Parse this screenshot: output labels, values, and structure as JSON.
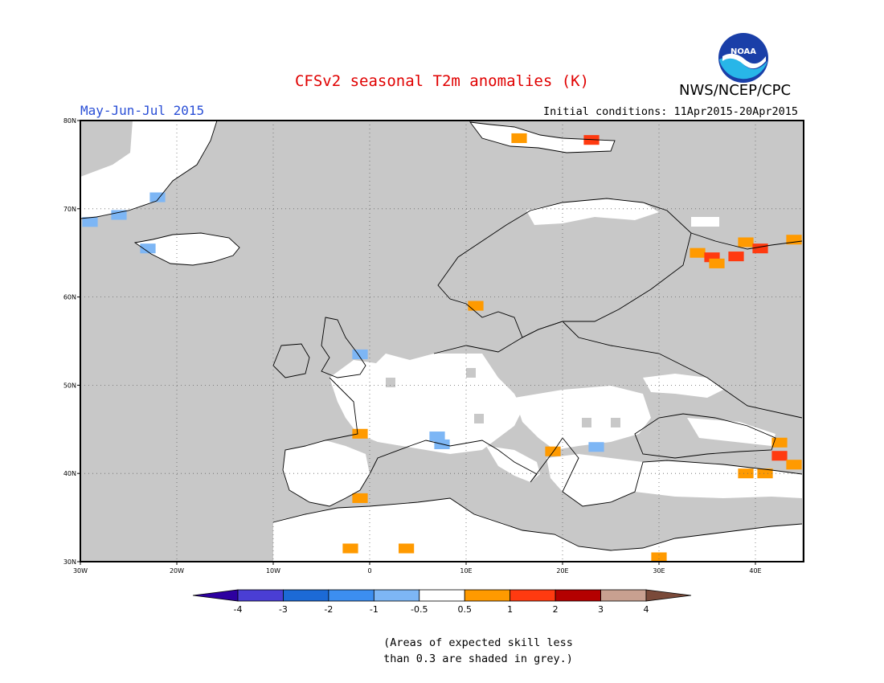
{
  "header": {
    "title": "CFSv2 seasonal T2m anomalies (K)",
    "agency": "NWS/NCEP/CPC",
    "period": "May-Jun-Jul 2015",
    "initial_conditions": "Initial conditions: 11Apr2015-20Apr2015",
    "logo_text": "NOAA"
  },
  "map": {
    "lon_range": [
      -30,
      45
    ],
    "lat_range": [
      30,
      80
    ],
    "lon_ticks": [
      {
        "value": -30,
        "label": "30W"
      },
      {
        "value": -20,
        "label": "20W"
      },
      {
        "value": -10,
        "label": "10W"
      },
      {
        "value": 0,
        "label": "0"
      },
      {
        "value": 10,
        "label": "10E"
      },
      {
        "value": 20,
        "label": "20E"
      },
      {
        "value": 30,
        "label": "30E"
      },
      {
        "value": 40,
        "label": "40E"
      }
    ],
    "lat_ticks": [
      {
        "value": 30,
        "label": "30N"
      },
      {
        "value": 40,
        "label": "40N"
      },
      {
        "value": 50,
        "label": "50N"
      },
      {
        "value": 60,
        "label": "60N"
      },
      {
        "value": 70,
        "label": "70N"
      },
      {
        "value": 80,
        "label": "80N"
      }
    ],
    "grid": true,
    "low_skill_color": "#c8c8c8",
    "anomaly_regions": [
      {
        "lon": 15.5,
        "lat": 78,
        "value": 0.8
      },
      {
        "lon": 23,
        "lat": 77.8,
        "value": 1.5
      },
      {
        "lon": 34,
        "lat": 65,
        "value": 0.8
      },
      {
        "lon": 39,
        "lat": 66.2,
        "value": 0.8
      },
      {
        "lon": 35.5,
        "lat": 64.5,
        "value": 1.5
      },
      {
        "lon": 38,
        "lat": 64.6,
        "value": 1.5
      },
      {
        "lon": 40.5,
        "lat": 65.5,
        "value": 1.5
      },
      {
        "lon": 36,
        "lat": 63.8,
        "value": 0.8
      },
      {
        "lon": 44,
        "lat": 66.5,
        "value": 0.8
      },
      {
        "lon": 11,
        "lat": 59,
        "value": 0.8
      },
      {
        "lon": -1,
        "lat": 44.5,
        "value": 0.8
      },
      {
        "lon": -1,
        "lat": 37.2,
        "value": 0.8
      },
      {
        "lon": -2,
        "lat": 31.5,
        "value": 0.8
      },
      {
        "lon": 3.8,
        "lat": 31.5,
        "value": 0.8
      },
      {
        "lon": 19,
        "lat": 42.5,
        "value": 0.8
      },
      {
        "lon": 30,
        "lat": 30.5,
        "value": 0.8
      },
      {
        "lon": 39,
        "lat": 40,
        "value": 0.8
      },
      {
        "lon": 42.5,
        "lat": 43.5,
        "value": 0.8
      },
      {
        "lon": 42.5,
        "lat": 42,
        "value": 1.5
      },
      {
        "lon": 44,
        "lat": 41,
        "value": 0.8
      },
      {
        "lon": 41,
        "lat": 40,
        "value": 0.8
      },
      {
        "lon": -29,
        "lat": 68.5,
        "value": -0.8
      },
      {
        "lon": -26,
        "lat": 69.3,
        "value": -0.8
      },
      {
        "lon": -22,
        "lat": 71.3,
        "value": -0.8
      },
      {
        "lon": -23,
        "lat": 65.5,
        "value": -0.8
      },
      {
        "lon": -1,
        "lat": 53.5,
        "value": -0.8
      },
      {
        "lon": 7,
        "lat": 44.2,
        "value": -0.8
      },
      {
        "lon": 7.5,
        "lat": 43.3,
        "value": -0.8
      },
      {
        "lon": 23.5,
        "lat": 43,
        "value": -0.8
      }
    ]
  },
  "colorbar": {
    "colors": [
      "#2d00a0",
      "#4a3ed4",
      "#1c6ad6",
      "#3c8ef0",
      "#7db6f5",
      "#ffffff",
      "#ff9a00",
      "#ff3a10",
      "#b40000",
      "#c8a090",
      "#7a4a3a"
    ],
    "labels": [
      "-4",
      "-3",
      "-2",
      "-1",
      "-0.5",
      "0.5",
      "1",
      "2",
      "3",
      "4"
    ]
  },
  "footnote": {
    "line1": "(Areas of expected skill less",
    "line2": "than 0.3 are shaded in grey.)"
  }
}
